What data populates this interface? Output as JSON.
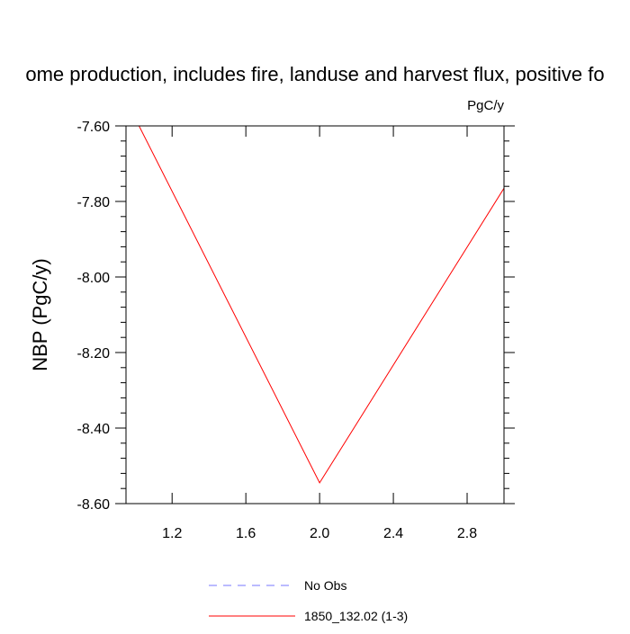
{
  "chart_data": {
    "type": "line",
    "title": "ome production, includes fire, landuse and harvest flux, positive fo",
    "units": "PgC/y",
    "ylabel": "NBP  (PgC/y)",
    "xlabel": "",
    "xlim": [
      0.95,
      3.0
    ],
    "ylim": [
      -8.6,
      -7.6
    ],
    "xticks": [
      1.2,
      1.6,
      2.0,
      2.4,
      2.8
    ],
    "xtick_labels": [
      "1.2",
      "1.6",
      "2.0",
      "2.4",
      "2.8"
    ],
    "yticks": [
      -7.6,
      -7.8,
      -8.0,
      -8.2,
      -8.4,
      -8.6
    ],
    "ytick_labels": [
      "-7.60",
      "-7.80",
      "-8.00",
      "-8.20",
      "-8.40",
      "-8.60"
    ],
    "grid": false,
    "legend_position": "bottom",
    "series": [
      {
        "name": "No Obs",
        "color": "#7777ff",
        "dash": "dashed",
        "x": [],
        "y": []
      },
      {
        "name": "1850_132.02 (1-3)",
        "color": "#ff0000",
        "dash": "solid",
        "x": [
          1.0,
          2.0,
          3.0
        ],
        "y": [
          -7.58,
          -8.545,
          -7.765
        ]
      }
    ]
  }
}
